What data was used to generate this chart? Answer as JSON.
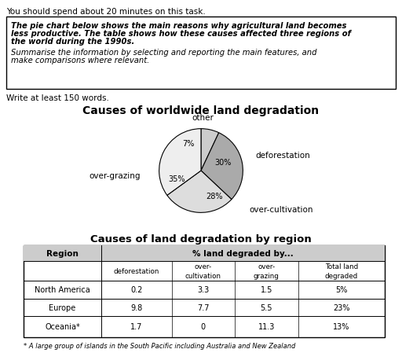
{
  "top_text": "You should spend about 20 minutes on this task.",
  "box_line1": "The pie chart below shows the main reasons why agricultural land becomes",
  "box_line2": "less productive. The table shows how these causes affected three regions of",
  "box_line3": "the world during the 1990s.",
  "box_line4": "Summarise the information by selecting and reporting the main features, and",
  "box_line5": "make comparisons where relevant.",
  "write_text": "Write at least 150 words.",
  "pie_title": "Causes of worldwide land degradation",
  "pie_sizes": [
    7,
    30,
    28,
    35
  ],
  "pie_colors": [
    "#cccccc",
    "#aaaaaa",
    "#dddddd",
    "#eeeeee"
  ],
  "table_title": "Causes of land degradation by region",
  "table_col_header1": "Region",
  "table_col_header2": "% land degraded by...",
  "table_sub_headers": [
    "deforestation",
    "over-\ncultivation",
    "over-\ngrazing",
    "Total land\ndegraded"
  ],
  "table_rows": [
    [
      "North America",
      "0.2",
      "3.3",
      "1.5",
      "5%"
    ],
    [
      "Europe",
      "9.8",
      "7.7",
      "5.5",
      "23%"
    ],
    [
      "Oceania*",
      "1.7",
      "0",
      "11.3",
      "13%"
    ]
  ],
  "footnote": "* A large group of islands in the South Pacific including Australia and New Zealand"
}
